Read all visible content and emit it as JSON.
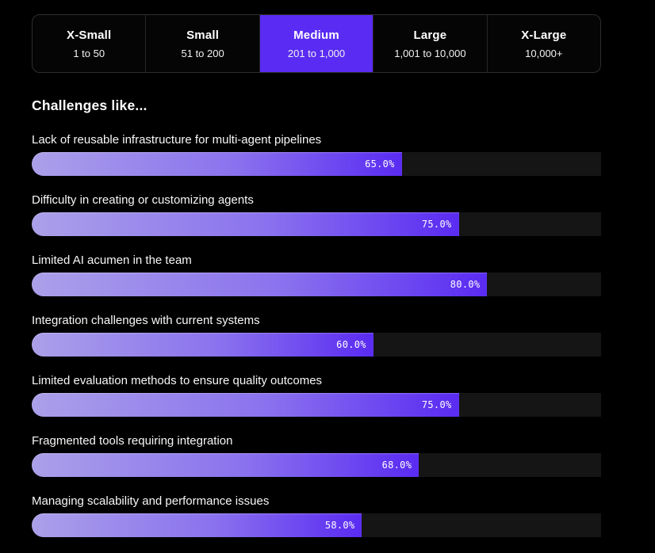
{
  "filter_tabs": {
    "items": [
      {
        "label": "X-Small",
        "range": "1 to 50",
        "selected": false
      },
      {
        "label": "Small",
        "range": "51 to 200",
        "selected": false
      },
      {
        "label": "Medium",
        "range": "201 to 1,000",
        "selected": true
      },
      {
        "label": "Large",
        "range": "1,001 to 10,000",
        "selected": false
      },
      {
        "label": "X-Large",
        "range": "10,000+",
        "selected": false
      }
    ]
  },
  "section": {
    "title": "Challenges like..."
  },
  "chart_data": {
    "type": "bar",
    "orientation": "horizontal",
    "title": "Challenges like...",
    "categories": [
      "Lack of reusable infrastructure for multi-agent pipelines",
      "Difficulty in creating or customizing agents",
      "Limited AI acumen in the team",
      "Integration challenges with current systems",
      "Limited evaluation methods to ensure quality outcomes",
      "Fragmented tools requiring integration",
      "Managing scalability and performance issues"
    ],
    "values": [
      65.0,
      75.0,
      80.0,
      60.0,
      75.0,
      68.0,
      58.0
    ],
    "value_labels": [
      "65.0%",
      "75.0%",
      "80.0%",
      "60.0%",
      "75.0%",
      "68.0%",
      "58.0%"
    ],
    "xlim": [
      0,
      100
    ],
    "grid": false,
    "legend": false,
    "value_label_position": "inside-end"
  },
  "colors": {
    "background": "#000000",
    "accent": "#5a2bf2",
    "bar_gradient_start": "#aba0e9",
    "bar_gradient_end": "#5a2bf2",
    "track": "#151515",
    "tab_border": "#2e2e2e",
    "text": "#ffffff"
  }
}
